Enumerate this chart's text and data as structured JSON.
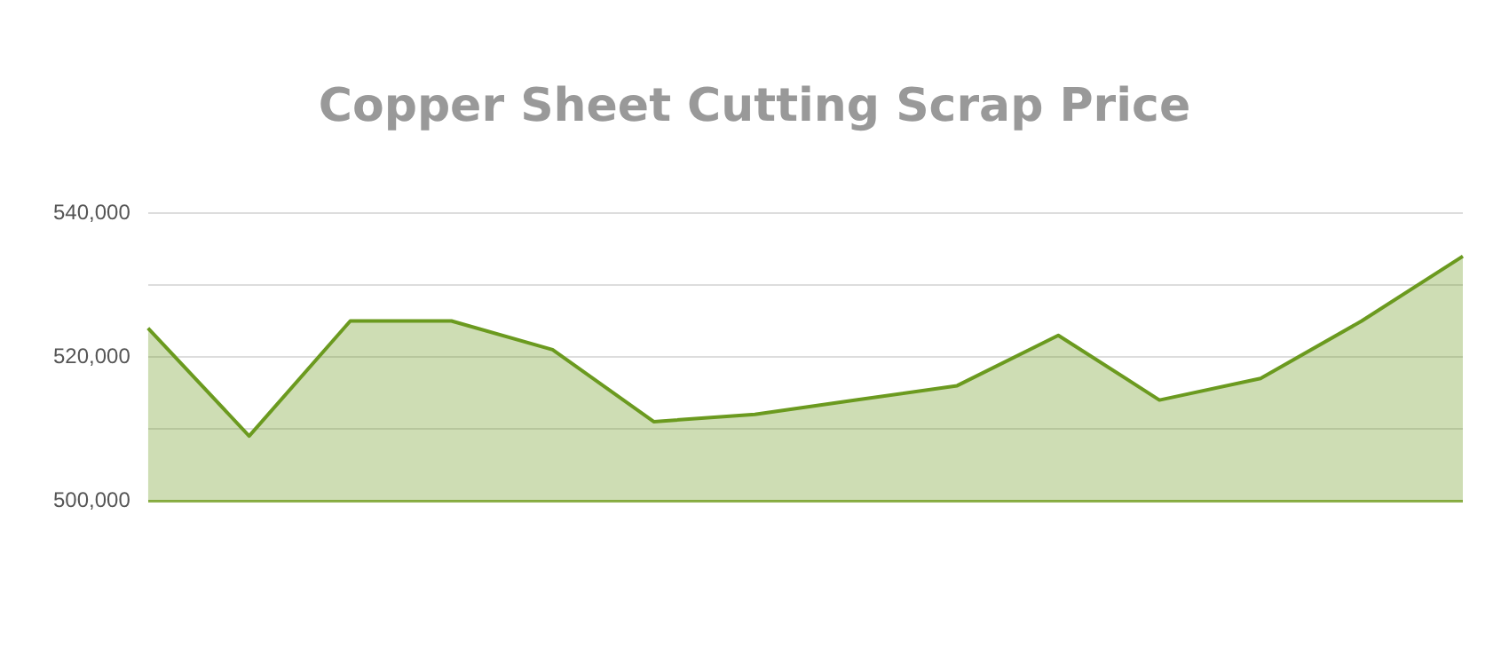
{
  "chart_data": {
    "type": "area",
    "title": "Copper Sheet Cutting Scrap Price",
    "categories": [
      null,
      null,
      null,
      null,
      null,
      null,
      null,
      null,
      null,
      null,
      null,
      null,
      null,
      null
    ],
    "series": [
      {
        "color": "#6b9a1f",
        "values": [
          524000,
          509000,
          525000,
          525000,
          521000,
          511000,
          512000,
          514000,
          516000,
          523000,
          514000,
          517000,
          525000,
          534000
        ]
      }
    ],
    "ylim": [
      500000,
      540000
    ],
    "yticks": [
      {
        "value": 500000,
        "label": "500,000"
      },
      {
        "value": 510000,
        "label": null
      },
      {
        "value": 520000,
        "label": "520,000"
      },
      {
        "value": 530000,
        "label": null
      },
      {
        "value": 540000,
        "label": "540,000"
      }
    ],
    "grid": "y",
    "legend": false,
    "marker": "none"
  }
}
